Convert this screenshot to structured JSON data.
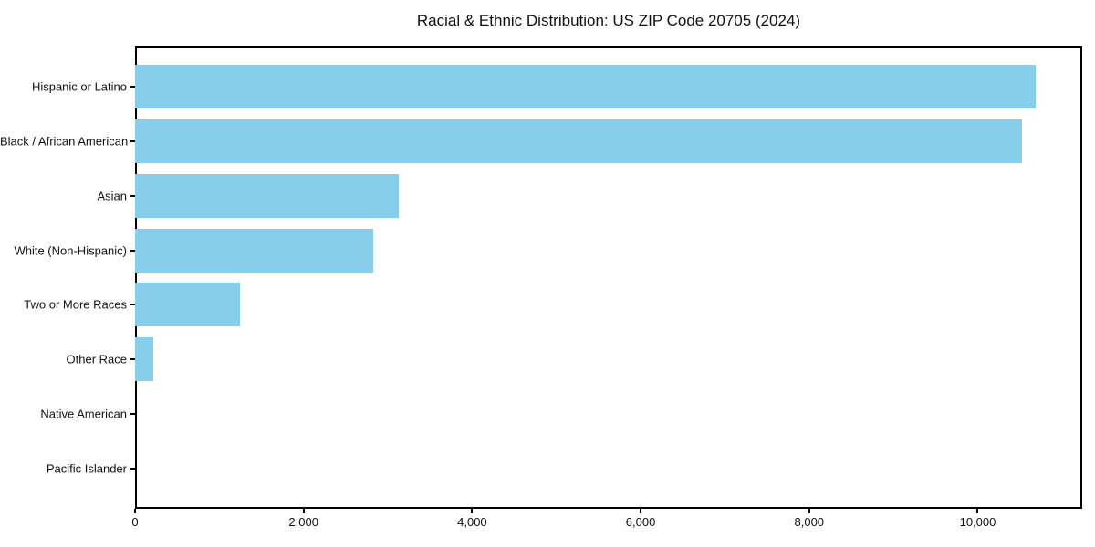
{
  "title": "Racial & Ethnic Distribution: US ZIP Code 20705 (2024)",
  "chart_data": {
    "type": "bar",
    "orientation": "horizontal",
    "title": "Racial & Ethnic Distribution: US ZIP Code 20705 (2024)",
    "categories": [
      "Hispanic or Latino",
      "Black / African American",
      "Asian",
      "White (Non-Hispanic)",
      "Two or More Races",
      "Other Race",
      "Native American",
      "Pacific Islander"
    ],
    "values": [
      10690,
      10530,
      3130,
      2830,
      1240,
      220,
      0,
      0
    ],
    "xlabel": "",
    "ylabel": "",
    "xlim": [
      0,
      11240
    ],
    "xticks": [
      0,
      2000,
      4000,
      6000,
      8000,
      10000
    ],
    "xtick_labels": [
      "0",
      "2,000",
      "4,000",
      "6,000",
      "8,000",
      "10,000"
    ],
    "bar_color": "#87CEEB",
    "spine_color": "#000000",
    "grid": false,
    "legend": null
  }
}
